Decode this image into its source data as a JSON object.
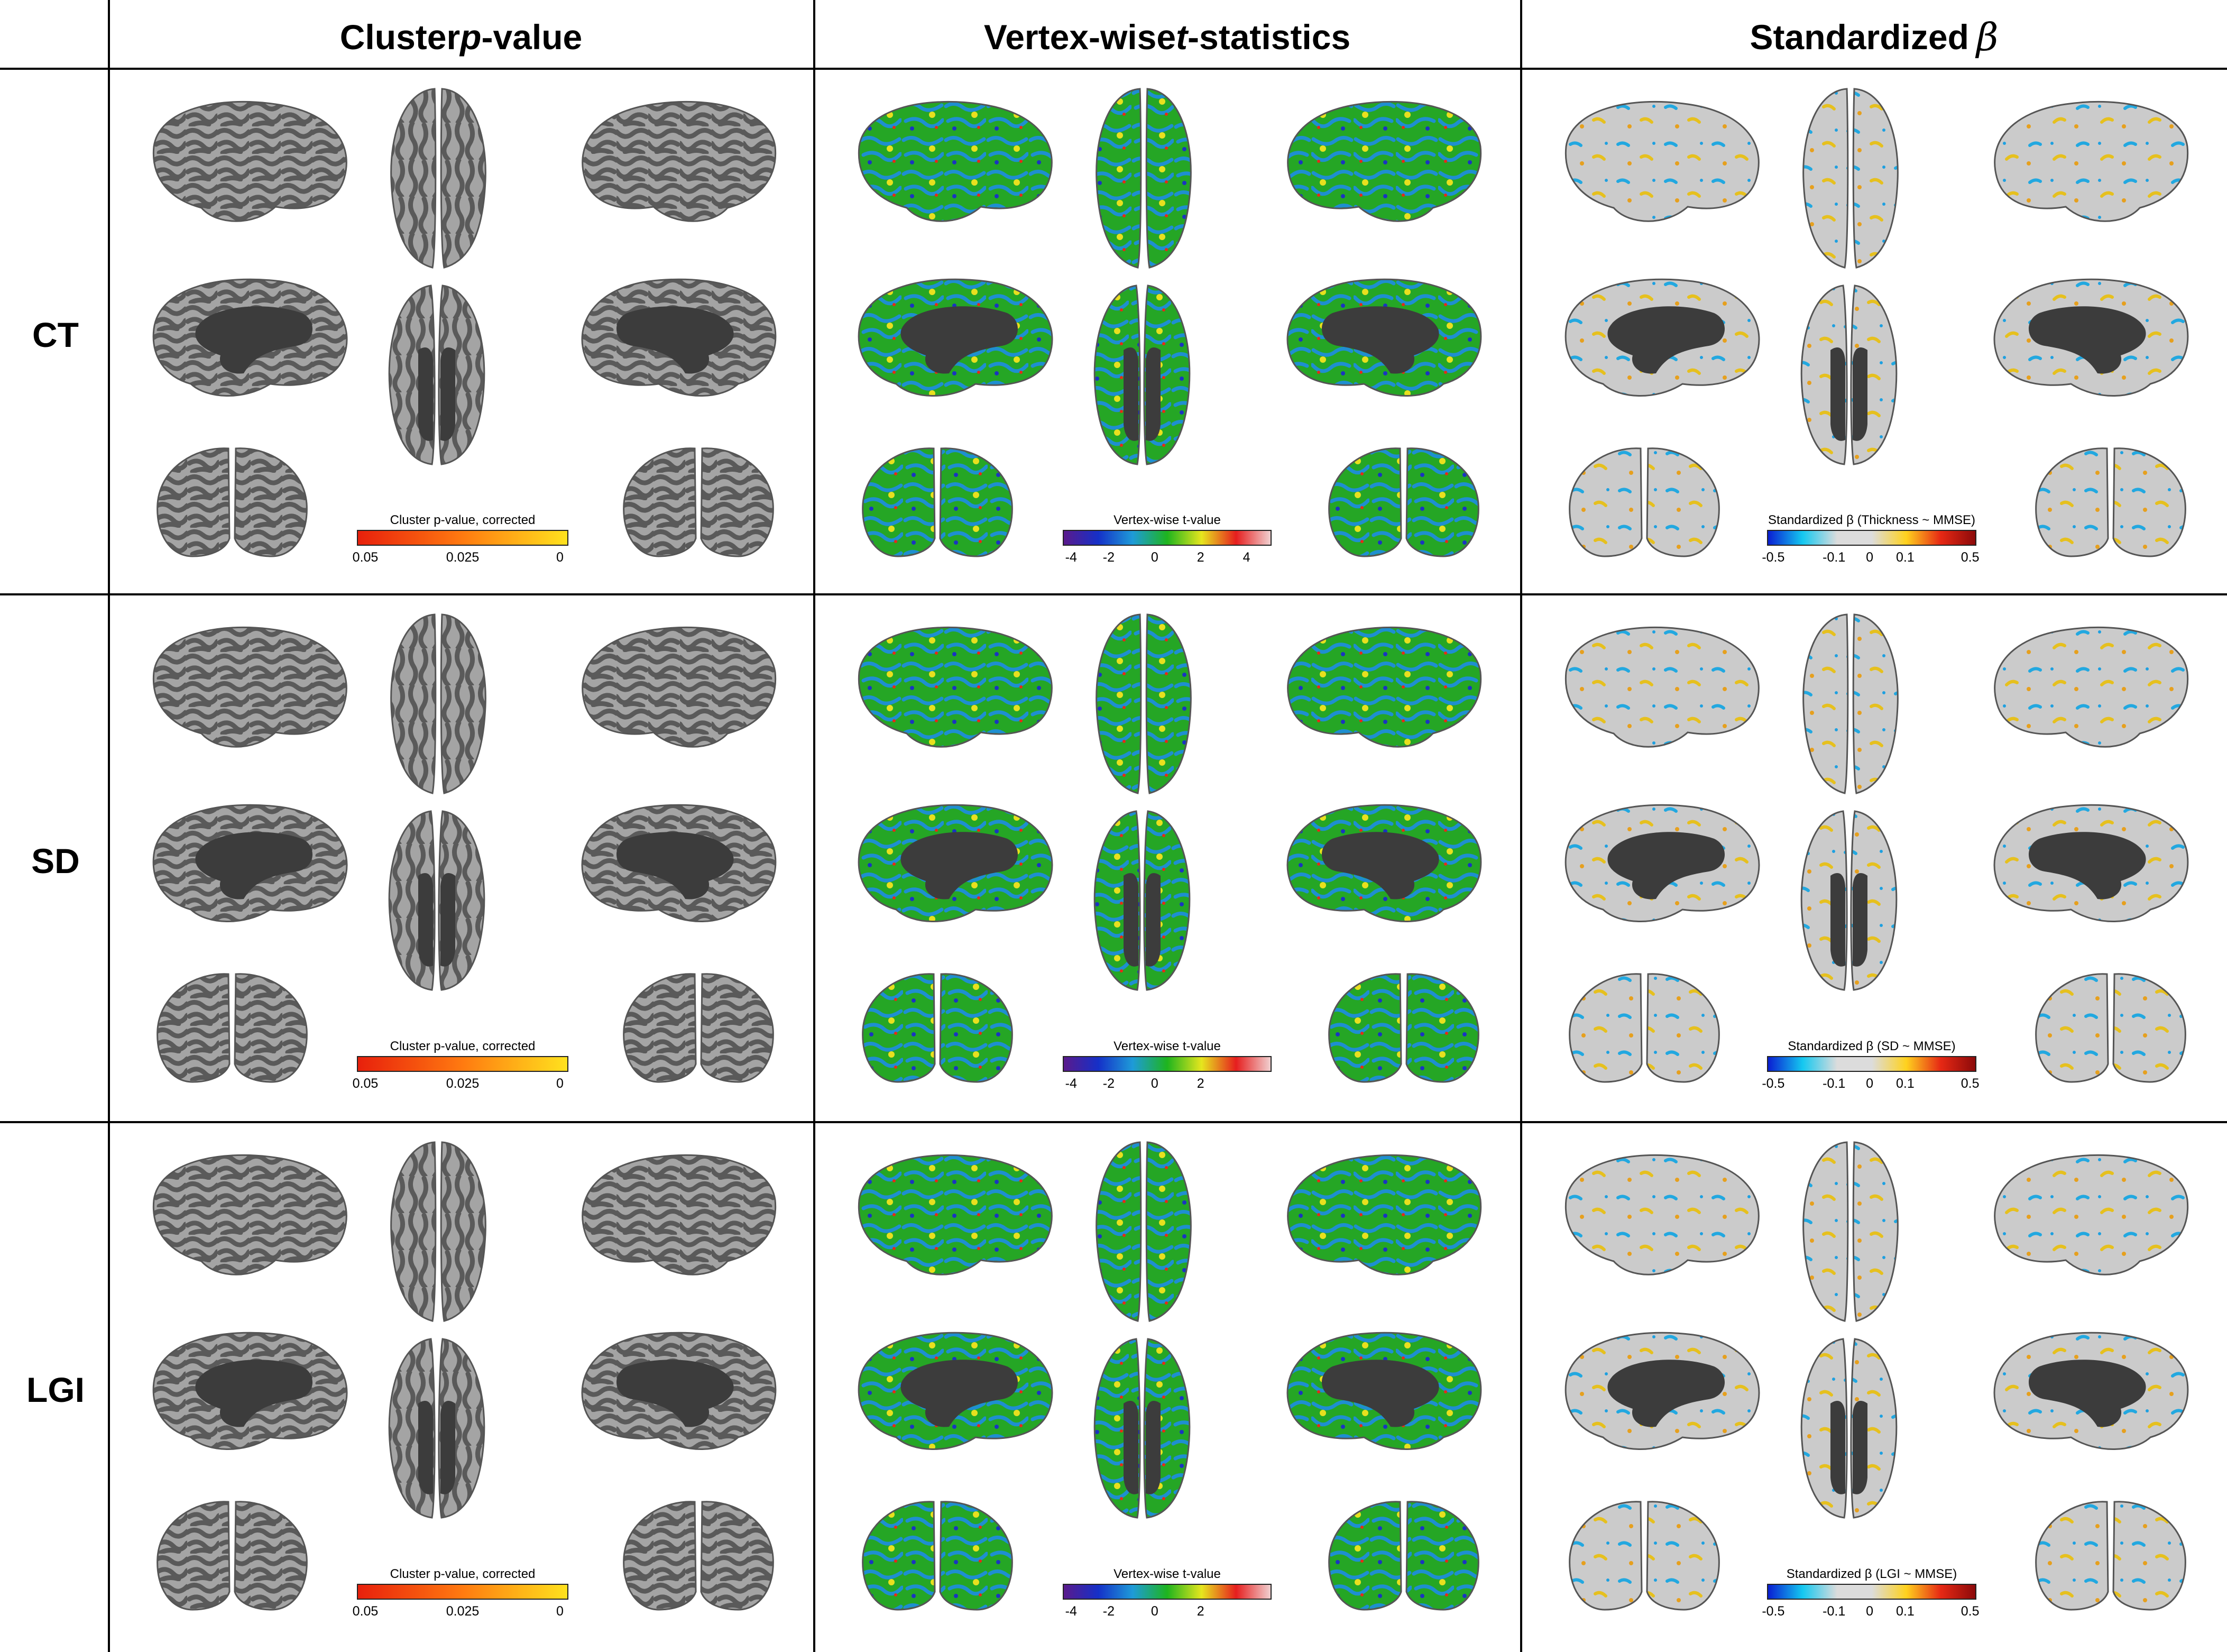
{
  "columns": {
    "cluster": {
      "title_pre": "Cluster ",
      "title_var": "p",
      "title_post": "-value"
    },
    "tstat": {
      "title_pre": "Vertex-wise ",
      "title_var": "t",
      "title_post": "-statistics"
    },
    "beta": {
      "title_pre": "Standardized",
      "title_greek": "β"
    }
  },
  "rows": [
    {
      "label": "CT",
      "cluster_bar": {
        "title": "Cluster p-value, corrected",
        "ticks": [
          "0.05",
          "0.025",
          "0"
        ]
      },
      "tstat_bar": {
        "title": "Vertex-wise t-value",
        "ticks": [
          "-4",
          "-2",
          "0",
          "2",
          "4"
        ]
      },
      "beta_bar": {
        "title": "Standardized β (Thickness ~ MMSE)",
        "ticks": [
          "-0.5",
          "-0.1",
          "0",
          "0.1",
          "0.5"
        ]
      }
    },
    {
      "label": "SD",
      "cluster_bar": {
        "title": "Cluster p-value, corrected",
        "ticks": [
          "0.05",
          "0.025",
          "0"
        ]
      },
      "tstat_bar": {
        "title": "Vertex-wise t-value",
        "ticks": [
          "-4",
          "-2",
          "0",
          "2"
        ]
      },
      "beta_bar": {
        "title": "Standardized β (SD ~ MMSE)",
        "ticks": [
          "-0.5",
          "-0.1",
          "0",
          "0.1",
          "0.5"
        ]
      }
    },
    {
      "label": "LGI",
      "cluster_bar": {
        "title": "Cluster p-value, corrected",
        "ticks": [
          "0.05",
          "0.025",
          "0"
        ]
      },
      "tstat_bar": {
        "title": "Vertex-wise t-value",
        "ticks": [
          "-4",
          "-2",
          "0",
          "2"
        ]
      },
      "beta_bar": {
        "title": "Standardized β (LGI ~ MMSE)",
        "ticks": [
          "-0.5",
          "-0.1",
          "0",
          "0.1",
          "0.5"
        ]
      }
    }
  ],
  "colors": {
    "cluster_gradient": [
      "#e8200c",
      "#ff7a10",
      "#ffe21e"
    ],
    "tstat_gradient": [
      "#5a1a8c",
      "#1530c8",
      "#1e9bd8",
      "#1eb41e",
      "#e6e61e",
      "#e61e1e",
      "#f0d0d0"
    ],
    "beta_gradient": [
      "#0a1ed2",
      "#14c8f0",
      "#dcdcdc",
      "#dcdcdc",
      "#ffd21e",
      "#e62814",
      "#8c0a0a"
    ],
    "cortex_gray": "#9b9b9b",
    "medial_wall": "#3c3c3c",
    "tstat_green": "#24a524",
    "beta_gray": "#c8c8c8"
  }
}
